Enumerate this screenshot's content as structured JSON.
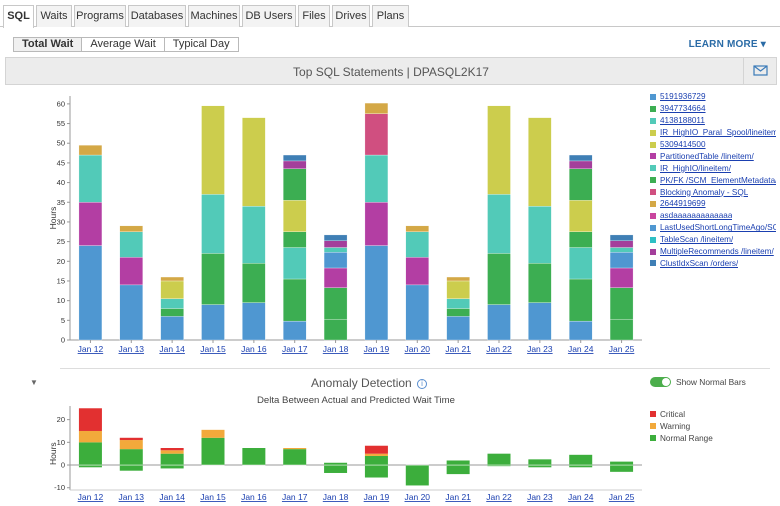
{
  "tabs": [
    "SQL",
    "Waits",
    "Programs",
    "Databases",
    "Machines",
    "DB Users",
    "Files",
    "Drives",
    "Plans"
  ],
  "time_filters": [
    "Total Wait",
    "Average Wait",
    "Typical Day"
  ],
  "learn_more": "LEARN MORE ▾",
  "header_title": "Top SQL Statements  |  DPASQL2K17",
  "anomaly": {
    "title": "Anomaly Detection",
    "subtitle": "Delta Between Actual and Predicted Wait Time",
    "toggle_label": "Show Normal Bars"
  },
  "chart_data": [
    {
      "type": "bar",
      "stacked": true,
      "ylabel": "Hours",
      "ylim": [
        0,
        62
      ],
      "yticks": [
        0,
        5,
        10,
        15,
        20,
        25,
        30,
        35,
        40,
        45,
        50,
        55,
        60
      ],
      "categories": [
        "Jan 12",
        "Jan 13",
        "Jan 14",
        "Jan 15",
        "Jan 16",
        "Jan 17",
        "Jan 18",
        "Jan 19",
        "Jan 20",
        "Jan 21",
        "Jan 22",
        "Jan 23",
        "Jan 24",
        "Jan 25"
      ],
      "legend_position": "right",
      "legend": [
        {
          "name": "5191936729",
          "color": "#4f97d1"
        },
        {
          "name": "3947734664",
          "color": "#3cae52"
        },
        {
          "name": "4138188011",
          "color": "#52cab8"
        },
        {
          "name": "IR_HighIO_Paral_Spool/lineitem",
          "color": "#cccd4d"
        },
        {
          "name": "5309414500",
          "color": "#cccd4d"
        },
        {
          "name": "PartitionedTable /lineitem/",
          "color": "#b33ea3"
        },
        {
          "name": "IR_HighIO/lineitem/",
          "color": "#52cab8"
        },
        {
          "name": "PK/FK /SCM_ElementMetadata/",
          "color": "#3cae52"
        },
        {
          "name": "Blocking Anomaly - SQL",
          "color": "#d04f80"
        },
        {
          "name": "2644919699",
          "color": "#d4a846"
        },
        {
          "name": "asdaaaaaaaaaaaaa",
          "color": "#c9459e"
        },
        {
          "name": "LastUsedShortLongTimeAgo/SCM_/",
          "color": "#4f97d1"
        },
        {
          "name": "TableScan /lineitem/",
          "color": "#2ec0c4"
        },
        {
          "name": "MultipleRecommends /lineitem/",
          "color": "#a43e9b"
        },
        {
          "name": "ClustIdxScan /orders/",
          "color": "#3f7fb5"
        }
      ],
      "stacks": [
        [
          {
            "v": 24,
            "c": "#4f97d1"
          },
          {
            "v": 11,
            "c": "#b33ea3"
          },
          {
            "v": 12,
            "c": "#52cab8"
          },
          {
            "v": 2.5,
            "c": "#d4a846"
          }
        ],
        [
          {
            "v": 14,
            "c": "#4f97d1"
          },
          {
            "v": 7,
            "c": "#b33ea3"
          },
          {
            "v": 6.5,
            "c": "#52cab8"
          },
          {
            "v": 1.5,
            "c": "#d4a846"
          }
        ],
        [
          {
            "v": 6,
            "c": "#4f97d1"
          },
          {
            "v": 2,
            "c": "#3cae52"
          },
          {
            "v": 2.5,
            "c": "#52cab8"
          },
          {
            "v": 4.5,
            "c": "#cccd4d"
          },
          {
            "v": 1,
            "c": "#d4a846"
          }
        ],
        [
          {
            "v": 9,
            "c": "#4f97d1"
          },
          {
            "v": 13,
            "c": "#3cae52"
          },
          {
            "v": 15,
            "c": "#52cab8"
          },
          {
            "v": 22.5,
            "c": "#cccd4d"
          }
        ],
        [
          {
            "v": 9.5,
            "c": "#4f97d1"
          },
          {
            "v": 10,
            "c": "#3cae52"
          },
          {
            "v": 14.5,
            "c": "#52cab8"
          },
          {
            "v": 22.5,
            "c": "#cccd4d"
          }
        ],
        [
          {
            "v": 4.8,
            "c": "#4f97d1"
          },
          {
            "v": 10.7,
            "c": "#3cae52"
          },
          {
            "v": 8,
            "c": "#52cab8"
          },
          {
            "v": 4,
            "c": "#3cae52"
          },
          {
            "v": 8,
            "c": "#cccd4d"
          },
          {
            "v": 8,
            "c": "#3cae52"
          },
          {
            "v": 2,
            "c": "#a43e9b"
          },
          {
            "v": 1.5,
            "c": "#3f7fb5"
          }
        ],
        [
          {
            "v": 5.3,
            "c": "#3cae52"
          },
          {
            "v": 8,
            "c": "#3cae52"
          },
          {
            "v": 5,
            "c": "#b33ea3"
          },
          {
            "v": 4,
            "c": "#4f97d1"
          },
          {
            "v": 1.2,
            "c": "#52cab8"
          },
          {
            "v": 1.7,
            "c": "#a43e9b"
          },
          {
            "v": 1.5,
            "c": "#3f7fb5"
          }
        ],
        [
          {
            "v": 24,
            "c": "#4f97d1"
          },
          {
            "v": 11,
            "c": "#b33ea3"
          },
          {
            "v": 12,
            "c": "#52cab8"
          },
          {
            "v": 10.5,
            "c": "#d04f80"
          },
          {
            "v": 2.7,
            "c": "#d4a846"
          }
        ],
        [
          {
            "v": 14,
            "c": "#4f97d1"
          },
          {
            "v": 7,
            "c": "#b33ea3"
          },
          {
            "v": 6.5,
            "c": "#52cab8"
          },
          {
            "v": 1.5,
            "c": "#d4a846"
          }
        ],
        [
          {
            "v": 6,
            "c": "#4f97d1"
          },
          {
            "v": 2,
            "c": "#3cae52"
          },
          {
            "v": 2.5,
            "c": "#52cab8"
          },
          {
            "v": 4.5,
            "c": "#cccd4d"
          },
          {
            "v": 1,
            "c": "#d4a846"
          }
        ],
        [
          {
            "v": 9,
            "c": "#4f97d1"
          },
          {
            "v": 13,
            "c": "#3cae52"
          },
          {
            "v": 15,
            "c": "#52cab8"
          },
          {
            "v": 22.5,
            "c": "#cccd4d"
          }
        ],
        [
          {
            "v": 9.5,
            "c": "#4f97d1"
          },
          {
            "v": 10,
            "c": "#3cae52"
          },
          {
            "v": 14.5,
            "c": "#52cab8"
          },
          {
            "v": 22.5,
            "c": "#cccd4d"
          }
        ],
        [
          {
            "v": 4.8,
            "c": "#4f97d1"
          },
          {
            "v": 10.7,
            "c": "#3cae52"
          },
          {
            "v": 8,
            "c": "#52cab8"
          },
          {
            "v": 4,
            "c": "#3cae52"
          },
          {
            "v": 8,
            "c": "#cccd4d"
          },
          {
            "v": 8,
            "c": "#3cae52"
          },
          {
            "v": 2,
            "c": "#a43e9b"
          },
          {
            "v": 1.5,
            "c": "#3f7fb5"
          }
        ],
        [
          {
            "v": 5.3,
            "c": "#3cae52"
          },
          {
            "v": 8,
            "c": "#3cae52"
          },
          {
            "v": 5,
            "c": "#b33ea3"
          },
          {
            "v": 4,
            "c": "#4f97d1"
          },
          {
            "v": 1.2,
            "c": "#52cab8"
          },
          {
            "v": 1.7,
            "c": "#a43e9b"
          },
          {
            "v": 1.5,
            "c": "#3f7fb5"
          }
        ]
      ]
    },
    {
      "type": "bar",
      "stacked": true,
      "title": "Delta Between Actual and Predicted Wait Time",
      "ylabel": "Hours",
      "ylim": [
        -11,
        26
      ],
      "yticks": [
        -10,
        0,
        10,
        20
      ],
      "categories": [
        "Jan 12",
        "Jan 13",
        "Jan 14",
        "Jan 15",
        "Jan 16",
        "Jan 17",
        "Jan 18",
        "Jan 19",
        "Jan 20",
        "Jan 21",
        "Jan 22",
        "Jan 23",
        "Jan 24",
        "Jan 25"
      ],
      "legend": [
        {
          "name": "Critical",
          "color": "#e23030"
        },
        {
          "name": "Warning",
          "color": "#f2a93b"
        },
        {
          "name": "Normal Range",
          "color": "#3cae3c"
        }
      ],
      "bars": [
        {
          "normal": [
            -1,
            10
          ],
          "warning": 5,
          "critical": 10
        },
        {
          "normal": [
            -2.5,
            7
          ],
          "warning": 4,
          "critical": 1
        },
        {
          "normal": [
            -1.5,
            5
          ],
          "warning": 1.5,
          "critical": 1
        },
        {
          "normal": [
            0,
            12
          ],
          "warning": 3.5,
          "critical": 0
        },
        {
          "normal": [
            0,
            7.5
          ],
          "warning": 0,
          "critical": 0
        },
        {
          "normal": [
            0,
            7
          ],
          "warning": 0.5,
          "critical": 0
        },
        {
          "normal": [
            -3.5,
            1
          ],
          "warning": 0,
          "critical": 0
        },
        {
          "normal": [
            -5.5,
            4
          ],
          "warning": 1,
          "critical": 3.5
        },
        {
          "normal": [
            -9,
            0
          ],
          "warning": 0,
          "critical": 0
        },
        {
          "normal": [
            -4,
            2
          ],
          "warning": 0,
          "critical": 0
        },
        {
          "normal": [
            -0.5,
            5
          ],
          "warning": 0,
          "critical": 0
        },
        {
          "normal": [
            -1,
            2.5
          ],
          "warning": 0,
          "critical": 0
        },
        {
          "normal": [
            -1,
            4.5
          ],
          "warning": 0,
          "critical": 0
        },
        {
          "normal": [
            -3,
            1.5
          ],
          "warning": 0,
          "critical": 0
        }
      ]
    }
  ]
}
